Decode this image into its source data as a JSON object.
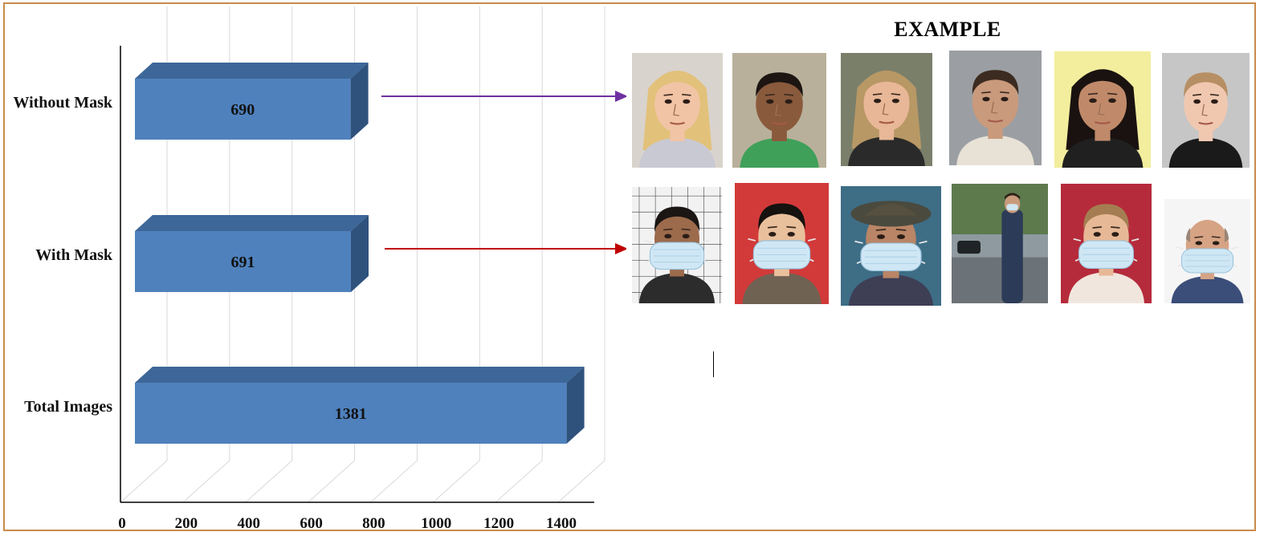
{
  "chart_data": {
    "type": "bar",
    "orientation": "horizontal",
    "style": "3d",
    "categories": [
      "Without Mask",
      "With Mask",
      "Total Images"
    ],
    "values": [
      690,
      691,
      1381
    ],
    "data_labels": [
      "690",
      "691",
      "1381"
    ],
    "xlim": [
      0,
      1400
    ],
    "xticks": [
      "0",
      "200",
      "400",
      "600",
      "800",
      "1000",
      "1200",
      "1400"
    ],
    "title": "",
    "xlabel": "",
    "ylabel": "",
    "grid": true,
    "legend": "none",
    "colors": {
      "bar_front": "#4f81bd",
      "bar_top": "#3d6798",
      "bar_side": "#2f527d",
      "grid": "#d9d9d9"
    }
  },
  "example": {
    "title": "EXAMPLE",
    "rows": [
      {
        "label_ref": "Without Mask",
        "arrow_color": "#7030a0",
        "faces": [
          "face-1-icon",
          "face-2-icon",
          "face-3-icon",
          "face-4-icon",
          "face-5-icon",
          "face-6-icon"
        ]
      },
      {
        "label_ref": "With Mask",
        "arrow_color": "#c00000",
        "faces": [
          "masked-face-1-icon",
          "masked-face-2-icon",
          "masked-face-3-icon",
          "masked-person-street-icon",
          "masked-face-5-icon",
          "masked-face-6-icon"
        ]
      }
    ]
  },
  "colors": {
    "frame_border": "#c98a4b"
  }
}
